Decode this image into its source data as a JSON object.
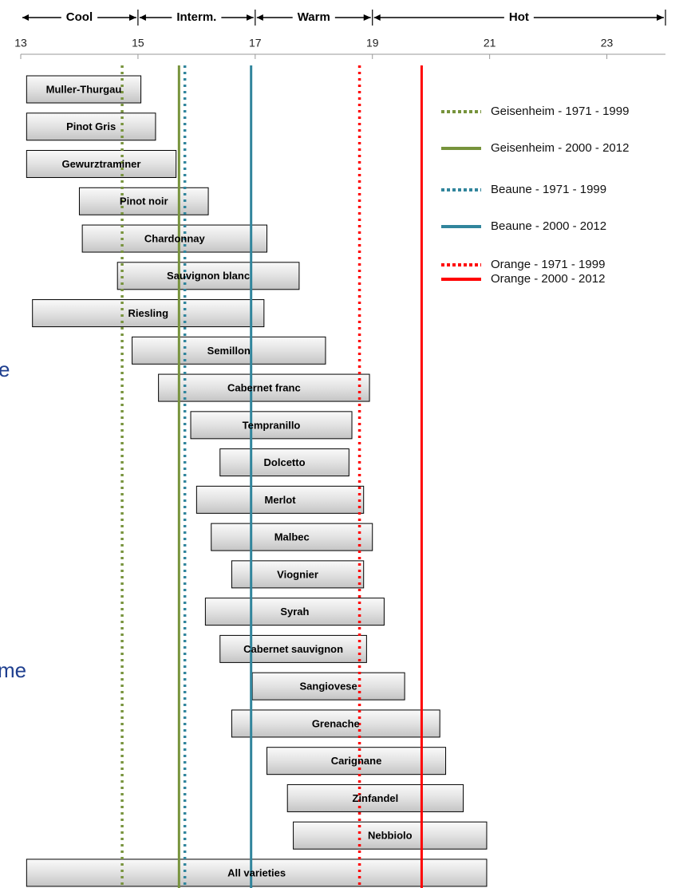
{
  "chart_data": {
    "type": "range-bar",
    "categories": [
      "Muller-Thurgau",
      "Pinot Gris",
      "Gewurztraminer",
      "Pinot noir",
      "Chardonnay",
      "Sauvignon blanc",
      "Riesling",
      "Semillon",
      "Cabernet franc",
      "Tempranillo",
      "Dolcetto",
      "Merlot",
      "Malbec",
      "Viognier",
      "Syrah",
      "Cabernet sauvignon",
      "Sangiovese",
      "Grenache",
      "Carignane",
      "Zinfandel",
      "Nebbiolo",
      "All varieties"
    ],
    "values": [
      [
        13.1,
        15.05
      ],
      [
        13.1,
        15.3
      ],
      [
        13.1,
        15.65
      ],
      [
        14.0,
        16.2
      ],
      [
        14.05,
        17.2
      ],
      [
        14.65,
        17.75
      ],
      [
        13.2,
        17.15
      ],
      [
        14.9,
        18.2
      ],
      [
        15.35,
        18.95
      ],
      [
        15.9,
        18.65
      ],
      [
        16.4,
        18.6
      ],
      [
        16.0,
        18.85
      ],
      [
        16.25,
        19.0
      ],
      [
        16.6,
        18.85
      ],
      [
        16.15,
        19.2
      ],
      [
        16.4,
        18.9
      ],
      [
        16.95,
        19.55
      ],
      [
        16.6,
        20.15
      ],
      [
        17.2,
        20.25
      ],
      [
        17.55,
        20.55
      ],
      [
        17.65,
        20.95
      ],
      [
        13.1,
        20.95
      ]
    ],
    "xlim": [
      13,
      24
    ],
    "xticks": [
      13,
      15,
      17,
      19,
      21,
      23
    ],
    "bands": [
      {
        "label": "Cool",
        "from": 13,
        "to": 15
      },
      {
        "label": "Interm.",
        "from": 15,
        "to": 17
      },
      {
        "label": "Warm",
        "from": 17,
        "to": 19
      },
      {
        "label": "Hot",
        "from": 19,
        "to": 24
      }
    ],
    "reference_lines": [
      {
        "name": "Geisenheim - 1971 - 1999",
        "value": 14.73,
        "color": "#77933c",
        "dashed": true
      },
      {
        "name": "Geisenheim - 2000 - 2012",
        "value": 15.7,
        "color": "#77933c",
        "dashed": false
      },
      {
        "name": "Beaune - 1971 - 1999",
        "value": 15.8,
        "color": "#31859c",
        "dashed": true
      },
      {
        "name": "Beaune - 2000 - 2012",
        "value": 16.93,
        "color": "#31859c",
        "dashed": false
      },
      {
        "name": "Orange - 1971 - 1999",
        "value": 18.78,
        "color": "#ff0000",
        "dashed": true
      },
      {
        "name": "Orange - 2000 - 2012",
        "value": 19.84,
        "color": "#ff0000",
        "dashed": false
      }
    ],
    "side_fragments": [
      "e",
      "me"
    ]
  }
}
